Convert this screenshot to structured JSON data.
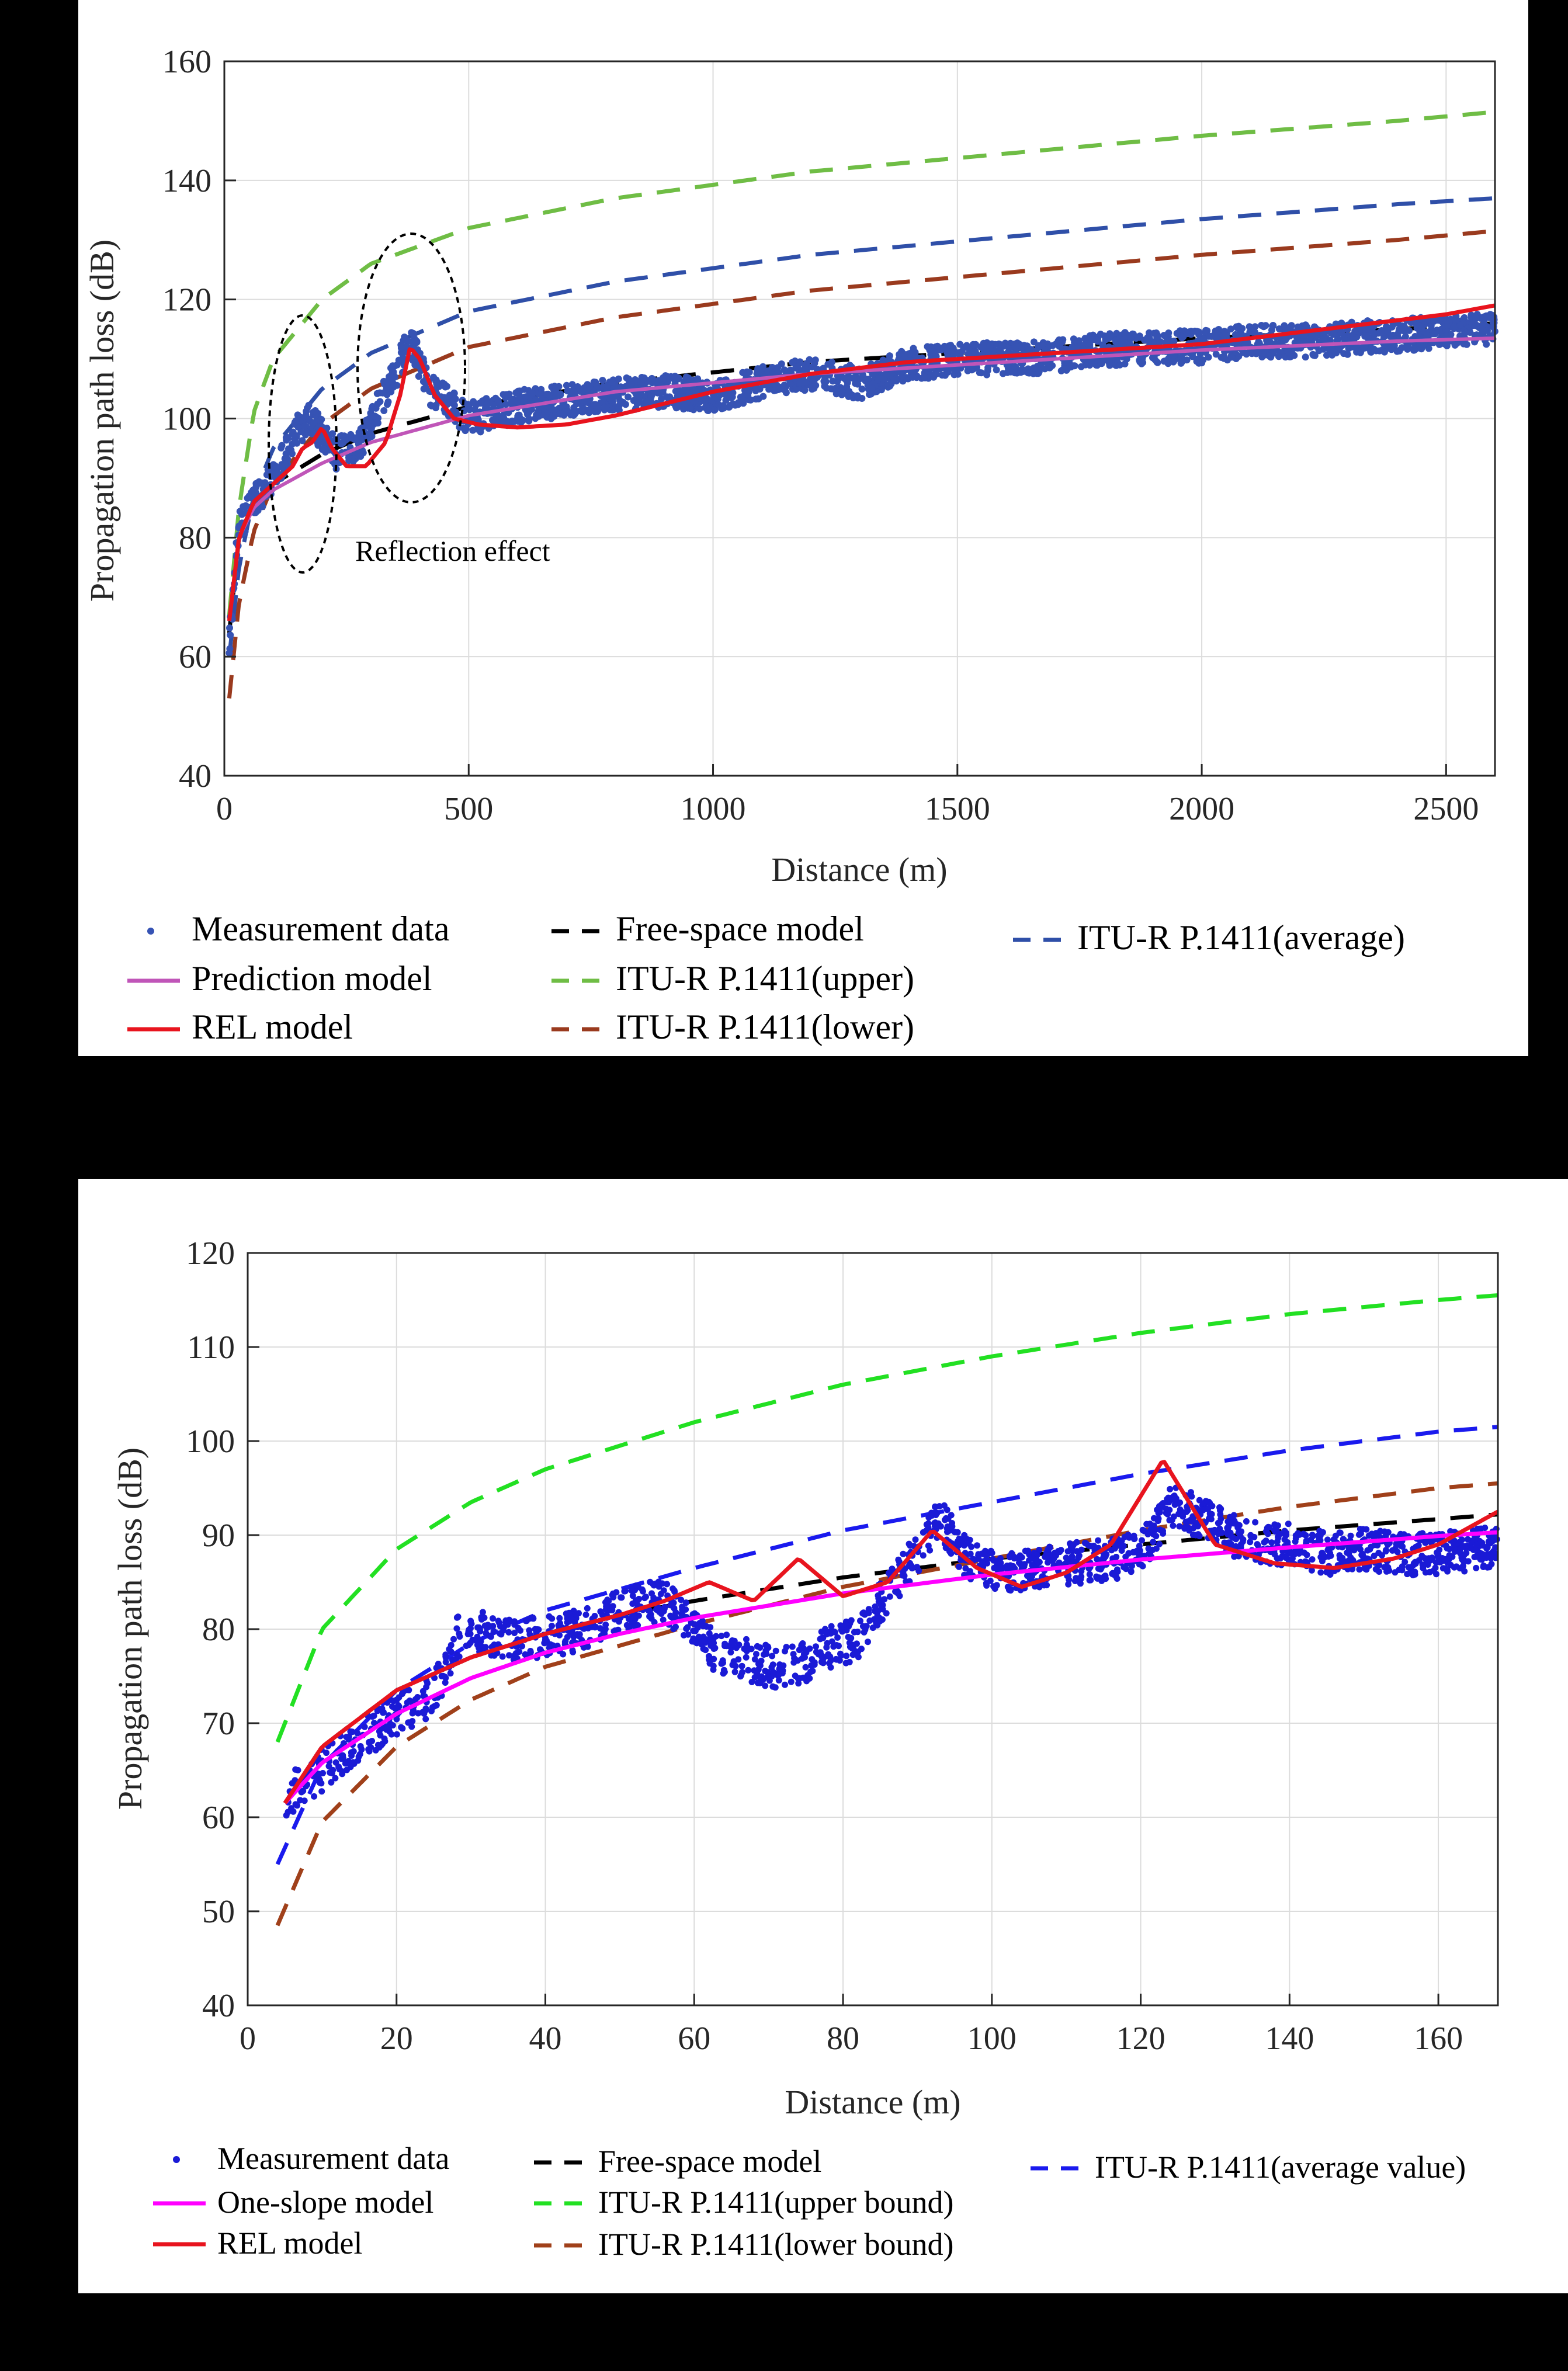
{
  "colors": {
    "measurement_a": "#3653b4",
    "measurement_b": "#1a1ad6",
    "prediction": "#c055b8",
    "one_slope": "#ff00ff",
    "rel": "#e8141e",
    "free_space": "#000000",
    "itu_upper_a": "#6fbd45",
    "itu_lower_a": "#9a3a1e",
    "itu_avg_a": "#2f4fa8",
    "itu_upper_b": "#22e022",
    "itu_lower_b": "#a0401a",
    "itu_avg_b": "#1a1aee"
  },
  "chart_data": [
    {
      "type": "line",
      "title": "",
      "xlabel": "Distance (m)",
      "ylabel": "Propagation path loss (dB)",
      "xlim": [
        0,
        2600
      ],
      "ylim": [
        40,
        160
      ],
      "x_ticks": [
        "0",
        "500",
        "1000",
        "1500",
        "2000",
        "2500"
      ],
      "y_ticks": [
        "40",
        "60",
        "80",
        "100",
        "120",
        "140",
        "160"
      ],
      "grid": true,
      "annotation": "Reflection effect",
      "legend": {
        "placement": "bottom",
        "entries": [
          {
            "label": "Measurement data",
            "style": "dot"
          },
          {
            "label": "Free-space model",
            "style": "dash"
          },
          {
            "label": "ITU-R P.1411(average)",
            "style": "dash"
          },
          {
            "label": "Prediction model",
            "style": "solid"
          },
          {
            "label": "ITU-R P.1411(upper)",
            "style": "dash"
          },
          {
            "label": "REL model",
            "style": "solid"
          },
          {
            "label": "ITU-R P.1411(lower)",
            "style": "dash"
          }
        ]
      },
      "series": [
        {
          "name": "Free-space model",
          "x": [
            10,
            30,
            60,
            100,
            200,
            300,
            500,
            800,
            1200,
            1600,
            2000,
            2400,
            2600
          ],
          "y": [
            64,
            80,
            86,
            89,
            94,
            97.5,
            102,
            106,
            109.5,
            111.5,
            113.5,
            115,
            116
          ]
        },
        {
          "name": "Prediction model",
          "x": [
            10,
            30,
            60,
            100,
            200,
            300,
            500,
            800,
            1200,
            1600,
            2000,
            2400,
            2600
          ],
          "y": [
            66,
            80,
            85,
            88,
            92.5,
            96,
            100.5,
            104.5,
            107.5,
            109.5,
            111.5,
            113,
            113.5
          ]
        },
        {
          "name": "REL model",
          "x": [
            10,
            30,
            60,
            100,
            140,
            160,
            180,
            200,
            220,
            250,
            290,
            330,
            360,
            380,
            400,
            430,
            470,
            520,
            600,
            700,
            800,
            900,
            1000,
            1100,
            1200,
            1300,
            1400,
            1500,
            1600,
            1700,
            1800,
            1900,
            2000,
            2100,
            2200,
            2300,
            2400,
            2500,
            2600
          ],
          "y": [
            66,
            80,
            86,
            89,
            92,
            95,
            96,
            98.5,
            95,
            92,
            92,
            96,
            104,
            112,
            110,
            104,
            100,
            99,
            98.5,
            99,
            100.5,
            102.5,
            104.5,
            106,
            107.5,
            108.5,
            109.5,
            110,
            110.5,
            111,
            111.5,
            112,
            112.5,
            113.5,
            114.5,
            115.5,
            116.5,
            117.5,
            119
          ]
        },
        {
          "name": "ITU-R P.1411(upper)",
          "x": [
            10,
            30,
            60,
            100,
            200,
            300,
            500,
            800,
            1200,
            1600,
            2000,
            2400,
            2600
          ],
          "y": [
            67,
            85,
            101,
            110,
            120,
            126,
            132,
            137,
            141.5,
            144.5,
            147.5,
            150,
            151.5
          ]
        },
        {
          "name": "ITU-R P.1411(average)",
          "x": [
            10,
            30,
            60,
            100,
            200,
            300,
            500,
            800,
            1200,
            1600,
            2000,
            2400,
            2600
          ],
          "y": [
            60,
            75,
            87,
            95,
            105,
            111,
            118,
            123,
            127.5,
            130.5,
            133.5,
            136,
            137
          ]
        },
        {
          "name": "ITU-R P.1411(lower)",
          "x": [
            10,
            30,
            60,
            100,
            200,
            300,
            500,
            800,
            1200,
            1600,
            2000,
            2400,
            2600
          ],
          "y": [
            53,
            69,
            81,
            89,
            99,
            105,
            112,
            117,
            121.5,
            124.5,
            127.5,
            130,
            131.5
          ]
        },
        {
          "name": "Measurement data",
          "x": [
            10,
            30,
            60,
            100,
            150,
            180,
            200,
            230,
            280,
            340,
            380,
            420,
            500,
            600,
            700,
            800,
            900,
            1000,
            1100,
            1200,
            1300,
            1400,
            1500,
            1600,
            1700,
            1800,
            1900,
            2000,
            2100,
            2200,
            2300,
            2400,
            2500,
            2600
          ],
          "y": [
            62,
            82,
            86,
            90,
            98,
            100,
            97,
            94,
            96,
            106,
            113,
            105,
            100,
            102,
            103,
            104,
            104.5,
            104,
            106,
            107.5,
            106,
            109,
            110,
            110,
            110.5,
            111.5,
            112,
            112,
            113,
            113,
            113.5,
            114,
            114.5,
            115
          ]
        }
      ]
    },
    {
      "type": "line",
      "title": "",
      "xlabel": "Distance (m)",
      "ylabel": "Propagation path loss (dB)",
      "xlim": [
        0,
        168
      ],
      "ylim": [
        40,
        120
      ],
      "x_ticks": [
        "0",
        "20",
        "40",
        "60",
        "80",
        "100",
        "120",
        "140",
        "160"
      ],
      "y_ticks": [
        "40",
        "50",
        "60",
        "70",
        "80",
        "90",
        "100",
        "110",
        "120"
      ],
      "grid": true,
      "legend": {
        "placement": "bottom",
        "entries": [
          {
            "label": "Measurement data",
            "style": "dot"
          },
          {
            "label": "Free-space model",
            "style": "dash"
          },
          {
            "label": "ITU-R P.1411(average value)",
            "style": "dash"
          },
          {
            "label": "One-slope model",
            "style": "solid"
          },
          {
            "label": "ITU-R P.1411(upper bound)",
            "style": "dash"
          },
          {
            "label": "REL model",
            "style": "solid"
          },
          {
            "label": "ITU-R P.1411(lower bound)",
            "style": "dash"
          }
        ]
      },
      "series": [
        {
          "name": "Free-space model",
          "x": [
            5,
            10,
            20,
            30,
            40,
            50,
            60,
            80,
            100,
            120,
            140,
            160,
            168
          ],
          "y": [
            61.5,
            67.5,
            73.5,
            77,
            79.5,
            81.5,
            83,
            85.5,
            87.5,
            89,
            90.5,
            91.7,
            92.2
          ]
        },
        {
          "name": "One-slope model",
          "x": [
            5,
            10,
            20,
            30,
            40,
            50,
            60,
            80,
            100,
            120,
            140,
            160,
            168
          ],
          "y": [
            61.5,
            65.8,
            71,
            74.8,
            77.5,
            79.5,
            81.2,
            83.8,
            85.8,
            87.4,
            88.7,
            89.9,
            90.3
          ]
        },
        {
          "name": "REL model",
          "x": [
            5,
            10,
            20,
            30,
            40,
            50,
            56,
            62,
            68,
            74,
            80,
            86,
            92,
            98,
            104,
            110,
            116,
            123,
            130,
            138,
            146,
            154,
            160,
            168
          ],
          "y": [
            61.5,
            67.5,
            73.5,
            77,
            79.5,
            81.5,
            83,
            85,
            83,
            87.5,
            83.5,
            85,
            90.5,
            86.5,
            84.5,
            86,
            89,
            98,
            89,
            87,
            86.5,
            87.5,
            89,
            92.5
          ]
        },
        {
          "name": "ITU-R P.1411(upper bound)",
          "x": [
            4,
            10,
            20,
            30,
            40,
            60,
            80,
            100,
            120,
            140,
            160,
            168
          ],
          "y": [
            68,
            80,
            88.5,
            93.5,
            97,
            102,
            106,
            109,
            111.5,
            113.5,
            115,
            115.5
          ]
        },
        {
          "name": "ITU-R P.1411(average value)",
          "x": [
            4,
            10,
            20,
            30,
            40,
            60,
            80,
            100,
            120,
            140,
            160,
            168
          ],
          "y": [
            55,
            65.5,
            73.5,
            78.5,
            82,
            86.5,
            90.5,
            93.5,
            96.5,
            99,
            101,
            101.5
          ]
        },
        {
          "name": "ITU-R P.1411(lower bound)",
          "x": [
            4,
            10,
            20,
            30,
            40,
            60,
            80,
            100,
            120,
            140,
            160,
            168
          ],
          "y": [
            48.5,
            59.5,
            67.5,
            72.5,
            76,
            80.5,
            84.5,
            87.5,
            90.5,
            93,
            95,
            95.5
          ]
        },
        {
          "name": "Measurement data",
          "x": [
            5,
            10,
            15,
            20,
            25,
            28,
            30,
            35,
            40,
            45,
            50,
            55,
            58,
            62,
            66,
            70,
            74,
            78,
            82,
            86,
            90,
            93,
            96,
            100,
            104,
            108,
            112,
            116,
            120,
            124,
            128,
            132,
            136,
            140,
            145,
            150,
            155,
            160,
            165,
            168
          ],
          "y": [
            62,
            65,
            68,
            71,
            73,
            79,
            80,
            79,
            79,
            80,
            82,
            83,
            82,
            78,
            77,
            76,
            76,
            78,
            79,
            84,
            88,
            92,
            88,
            86,
            86,
            87,
            87,
            87.5,
            88,
            93,
            92,
            90,
            89,
            89,
            88,
            88.5,
            88,
            88,
            88.5,
            89
          ]
        }
      ]
    }
  ]
}
